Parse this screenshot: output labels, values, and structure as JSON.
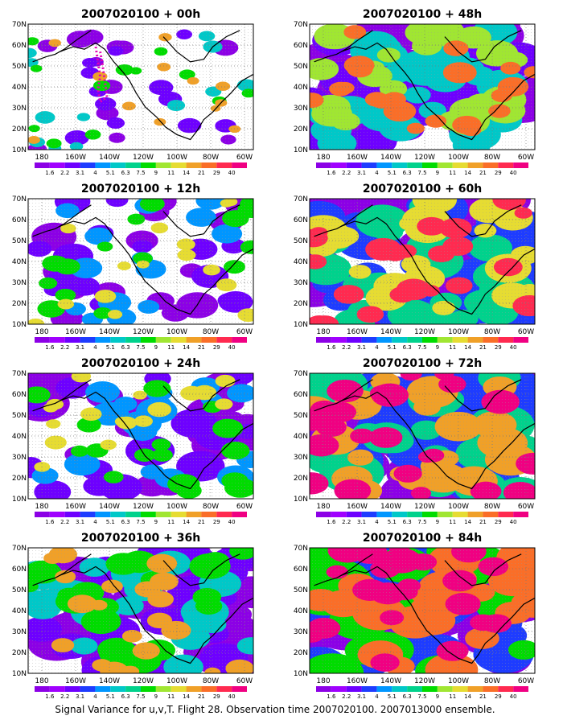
{
  "figure": {
    "caption": "Signal Variance for u,v,T. Flight 28. Observation time 2007020100. 2007013000 ensemble."
  },
  "colorbar": {
    "labels": [
      "1.6",
      "2.2",
      "3.1",
      "4",
      "5.1",
      "6.3",
      "7.5",
      "9",
      "11",
      "14",
      "21",
      "29",
      "40"
    ],
    "colors": [
      "#8c00e6",
      "#a000ff",
      "#6e00ff",
      "#1e3cff",
      "#0096ff",
      "#00c8c8",
      "#00d28c",
      "#00dc00",
      "#a0e632",
      "#e6dc32",
      "#f0a028",
      "#fa6e28",
      "#ff2a50",
      "#f00082"
    ]
  },
  "map": {
    "lat_labels": [
      "70N",
      "60N",
      "50N",
      "40N",
      "30N",
      "20N",
      "10N"
    ],
    "lon_labels": [
      "180",
      "160W",
      "140W",
      "120W",
      "100W",
      "80W",
      "60W"
    ],
    "grid": "dotted"
  },
  "panels": [
    {
      "title": "2007020100 + 00h",
      "coverage": 0.2,
      "level": 0.4,
      "flight_track": true
    },
    {
      "title": "2007020100 + 48h",
      "coverage": 0.75,
      "level": 0.45,
      "flight_track": false
    },
    {
      "title": "2007020100 + 12h",
      "coverage": 0.4,
      "level": 0.35,
      "flight_track": false
    },
    {
      "title": "2007020100 + 60h",
      "coverage": 0.8,
      "level": 0.5,
      "flight_track": false
    },
    {
      "title": "2007020100 + 24h",
      "coverage": 0.5,
      "level": 0.35,
      "flight_track": false
    },
    {
      "title": "2007020100 + 72h",
      "coverage": 0.85,
      "level": 0.6,
      "flight_track": false
    },
    {
      "title": "2007020100 + 36h",
      "coverage": 0.65,
      "level": 0.4,
      "flight_track": false
    },
    {
      "title": "2007020100 + 84h",
      "coverage": 0.9,
      "level": 0.7,
      "flight_track": false
    }
  ]
}
